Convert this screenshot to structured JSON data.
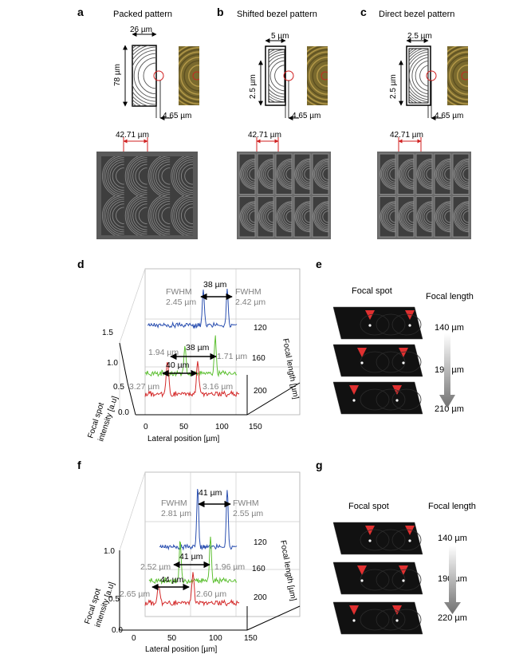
{
  "panels": {
    "a": {
      "letter": "a",
      "title": "Packed pattern",
      "w": "26 µm",
      "h": "78 µm",
      "gap": "4.65 µm",
      "pitch": "42.71 µm"
    },
    "b": {
      "letter": "b",
      "title": "Shifted bezel pattern",
      "w": "5 µm",
      "h": "2.5 µm",
      "gap": "4.65 µm",
      "pitch": "42.71 µm"
    },
    "c": {
      "letter": "c",
      "title": "Direct bezel pattern",
      "w": "2.5 µm",
      "h": "2.5 µm",
      "gap": "4.65 µm",
      "pitch": "42.71 µm"
    }
  },
  "plot_d": {
    "letter": "d",
    "fwhm_word": "FWHM",
    "top_fwhm": [
      "2.45 µm",
      "2.42 µm"
    ],
    "top_sep": "38 µm",
    "mid_fwhm": [
      "1.94 µm",
      "1.71 µm"
    ],
    "mid_sep": "38 µm",
    "bot_fwhm": [
      "3.27 µm",
      "3.16 µm"
    ],
    "bot_sep": "40 µm",
    "x_ticks": [
      "0",
      "50",
      "100",
      "150"
    ],
    "y_ticks": [
      "0.0",
      "0.5",
      "1.0",
      "1.5"
    ],
    "z_ticks": [
      "120",
      "160",
      "200"
    ],
    "x_label": "Lateral position [µm]",
    "y_label": "Focal spot intensity [a.u]",
    "z_label": "Focal length [µm]"
  },
  "plot_f": {
    "letter": "f",
    "fwhm_word": "FWHM",
    "top_fwhm": [
      "2.81 µm",
      "2.55 µm"
    ],
    "top_sep": "41 µm",
    "mid_fwhm": [
      "2.52 µm",
      "1.96 µm"
    ],
    "mid_sep": "41 µm",
    "bot_fwhm": [
      "2.65 µm",
      "2.60 µm"
    ],
    "bot_sep": "44 µm",
    "x_ticks": [
      "0",
      "50",
      "100",
      "150"
    ],
    "y_ticks": [
      "0.0",
      "0.5",
      "1.0"
    ],
    "z_ticks": [
      "120",
      "160",
      "200"
    ],
    "x_label": "Lateral position [µm]",
    "y_label": "Focal spot intensity [a.u]",
    "z_label": "Focal length [µm]"
  },
  "panel_e": {
    "letter": "e",
    "col1": "Focal spot",
    "col2": "Focal length",
    "lengths": [
      "140 µm",
      "190 µm",
      "210 µm"
    ]
  },
  "panel_g": {
    "letter": "g",
    "col1": "Focal spot",
    "col2": "Focal length",
    "lengths": [
      "140 µm",
      "190 µm",
      "220 µm"
    ]
  },
  "colors": {
    "blue": "#2a4fb0",
    "green": "#5ec033",
    "red": "#d42a2a",
    "arrow": "#e03030"
  }
}
